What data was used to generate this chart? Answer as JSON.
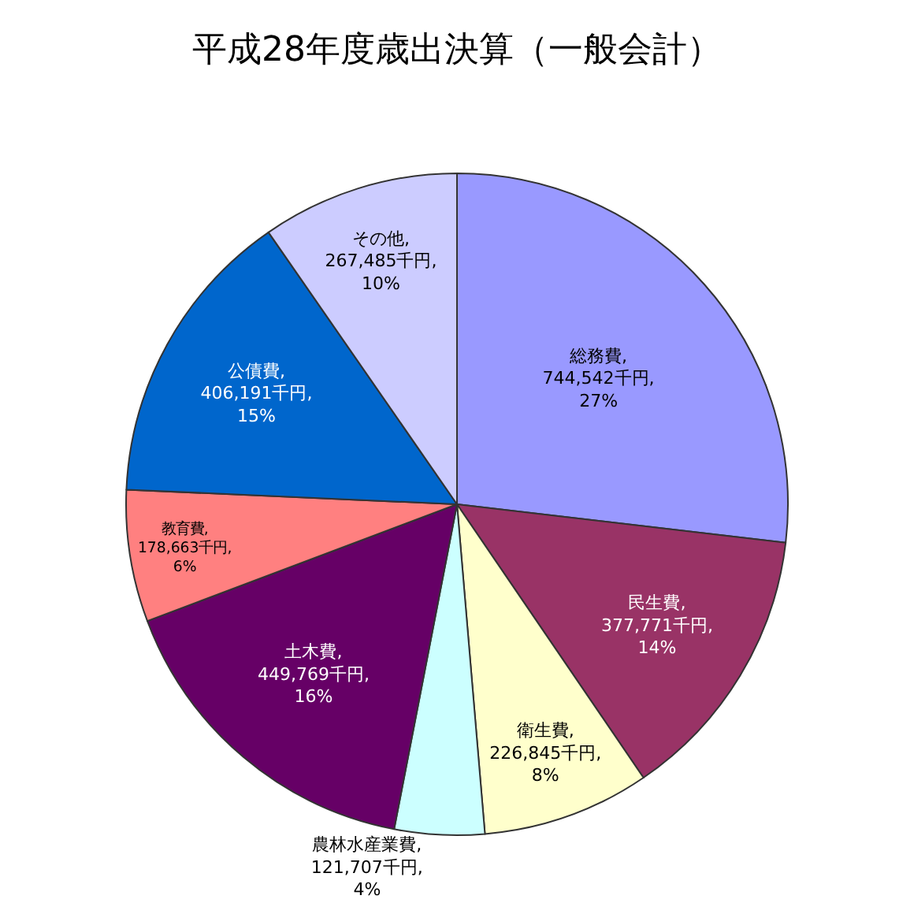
{
  "chart_data": {
    "type": "pie",
    "title": "平成28年度歳出決算（一般会計）",
    "categories": [
      "総務費",
      "民生費",
      "衛生費",
      "農林水産業費",
      "土木費",
      "教育費",
      "公債費",
      "その他"
    ],
    "values": [
      744542,
      377771,
      226845,
      121707,
      449769,
      178663,
      406191,
      267485
    ],
    "colors": [
      "#9999ff",
      "#993366",
      "#ffffcc",
      "#ccffff",
      "#660066",
      "#ff8080",
      "#0066cc",
      "#ccccff"
    ],
    "value_labels": [
      ", 744,542千円, 27%",
      ", 377,771千円, 14%",
      ", 226,845千円, 8%",
      ", 121,707千円, 4%",
      ", 449,769千円, 16%",
      ", 178,663千円, 6%",
      ", 406,191千円, 15%",
      ", 267,485千円, 10%"
    ],
    "legend": false
  }
}
